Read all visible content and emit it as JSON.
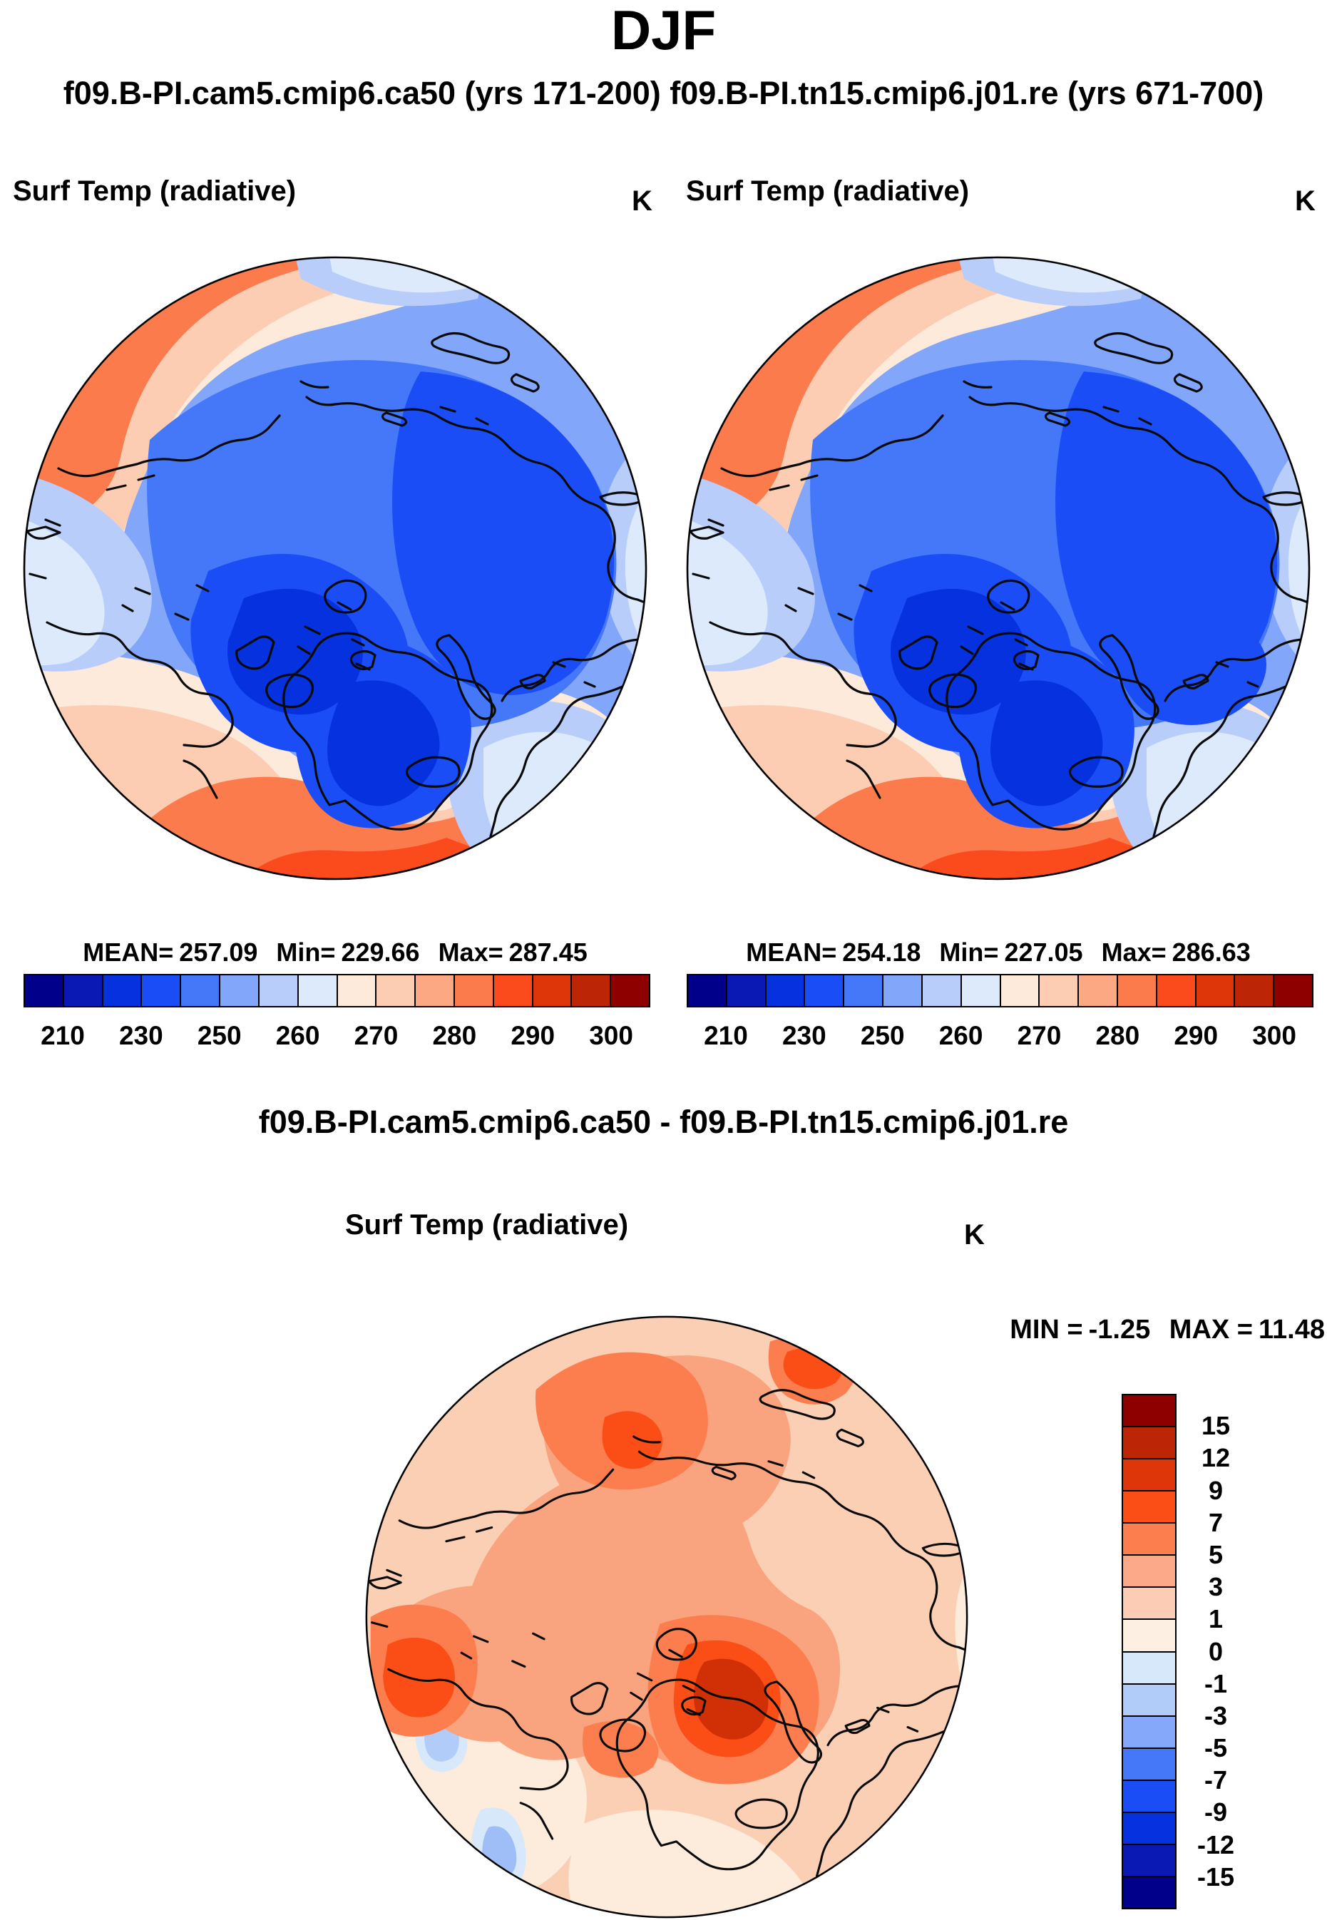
{
  "page": {
    "title": "DJF",
    "subtitle": "f09.B-PI.cam5.cmip6.ca50 (yrs 171-200) f09.B-PI.tn15.cmip6.j01.re (yrs 671-700)",
    "diff_title": "f09.B-PI.cam5.cmip6.ca50 - f09.B-PI.tn15.cmip6.j01.re"
  },
  "panels": [
    {
      "title": "Surf Temp (radiative)",
      "units": "K",
      "case": "f09.B-PI.cam5.cmip6.ca50",
      "years": "yrs 171-200",
      "stats": {
        "mean_label": "MEAN=",
        "mean": "257.09",
        "min_label": "Min=",
        "min": "229.66",
        "max_label": "Max=",
        "max": "287.45"
      }
    },
    {
      "title": "Surf Temp (radiative)",
      "units": "K",
      "case": "f09.B-PI.tn15.cmip6.j01.re",
      "years": "yrs 671-700",
      "stats": {
        "mean_label": "MEAN=",
        "mean": "254.18",
        "min_label": "Min=",
        "min": "227.05",
        "max_label": "Max=",
        "max": "286.63"
      }
    },
    {
      "title": "Surf Temp (radiative)",
      "units": "K",
      "case": "f09.B-PI.cam5.cmip6.ca50 - f09.B-PI.tn15.cmip6.j01.re",
      "stats": {
        "min_label": "MIN =",
        "min": "-1.25",
        "max_label": "MAX =",
        "max": "11.48"
      }
    }
  ],
  "colorbars": {
    "abs": {
      "orientation": "horizontal",
      "segments": 16,
      "colors": [
        "#00008B",
        "#0A18B4",
        "#0531DE",
        "#1B4DF7",
        "#4478F8",
        "#82A6FA",
        "#B8CDF9",
        "#DCEAFB",
        "#FDEADB",
        "#FCCDB3",
        "#FCA983",
        "#FC7B4C",
        "#FB4B1D",
        "#DF3609",
        "#BC2606",
        "#8E0000"
      ],
      "tick_positions": [
        1,
        3,
        5,
        7,
        9,
        11,
        13,
        15
      ],
      "tick_labels": [
        "210",
        "230",
        "250",
        "260",
        "270",
        "280",
        "290",
        "300"
      ]
    },
    "diff": {
      "orientation": "vertical",
      "segments": 16,
      "colors": [
        "#8E0000",
        "#BC2606",
        "#DF3609",
        "#FB4E16",
        "#FC7E4E",
        "#FCA98A",
        "#FCCDB4",
        "#FDEFE2",
        "#D8E8FB",
        "#B2CCF9",
        "#85A8FA",
        "#4478F8",
        "#1B4DF7",
        "#0531DE",
        "#0A18B4",
        "#00008B"
      ],
      "tick_positions": [
        1,
        2,
        3,
        4,
        5,
        6,
        7,
        8,
        9,
        10,
        11,
        12,
        13,
        14,
        15
      ],
      "tick_labels": [
        "15",
        "12",
        "9",
        "7",
        "5",
        "3",
        "1",
        "0",
        "-1",
        "-3",
        "-5",
        "-7",
        "-9",
        "-12",
        "-15"
      ]
    }
  },
  "chart_data": [
    {
      "type": "map-contour",
      "projection": "north-polar-stereographic",
      "season": "DJF",
      "title": "Surf Temp (radiative)",
      "units": "K",
      "case": "f09.B-PI.cam5.cmip6.ca50",
      "years": "yrs 171-200",
      "stats": {
        "mean": 257.09,
        "min": 229.66,
        "max": 287.45
      },
      "colorbar": {
        "orientation": "horizontal",
        "n_segments": 16,
        "tick_values": [
          210,
          230,
          250,
          260,
          270,
          280,
          290,
          300
        ]
      }
    },
    {
      "type": "map-contour",
      "projection": "north-polar-stereographic",
      "season": "DJF",
      "title": "Surf Temp (radiative)",
      "units": "K",
      "case": "f09.B-PI.tn15.cmip6.j01.re",
      "years": "yrs 671-700",
      "stats": {
        "mean": 254.18,
        "min": 227.05,
        "max": 286.63
      },
      "colorbar": {
        "orientation": "horizontal",
        "n_segments": 16,
        "tick_values": [
          210,
          230,
          250,
          260,
          270,
          280,
          290,
          300
        ]
      }
    },
    {
      "type": "map-contour",
      "projection": "north-polar-stereographic",
      "season": "DJF",
      "title": "Surf Temp (radiative)",
      "units": "K",
      "case": "f09.B-PI.cam5.cmip6.ca50 - f09.B-PI.tn15.cmip6.j01.re",
      "stats": {
        "min": -1.25,
        "max": 11.48
      },
      "colorbar": {
        "orientation": "vertical",
        "n_segments": 16,
        "tick_values": [
          15,
          12,
          9,
          7,
          5,
          3,
          1,
          0,
          -1,
          -3,
          -5,
          -7,
          -9,
          -12,
          -15
        ]
      }
    }
  ]
}
